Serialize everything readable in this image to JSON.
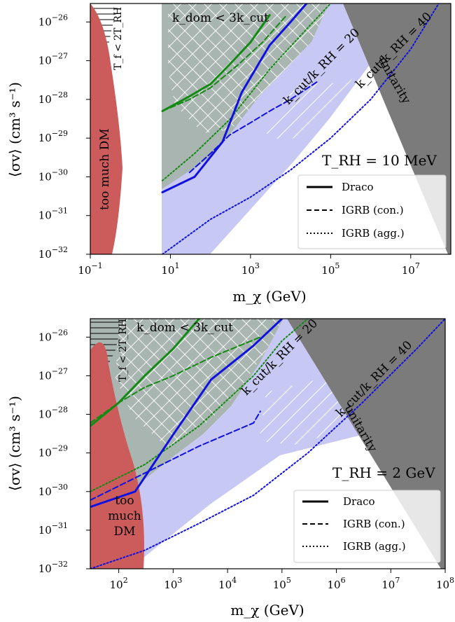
{
  "chart_data": [
    {
      "type": "line",
      "panel": "top",
      "x_scale": "log",
      "y_scale": "log",
      "xlim": [
        0.1,
        100000000
      ],
      "ylim": [
        1e-32,
        3e-26
      ],
      "xlabel": "m_χ (GeV)",
      "ylabel": "⟨σv⟩ (cm³ s⁻¹)",
      "x_tick_exps": [
        -1,
        1,
        3,
        5,
        7
      ],
      "y_tick_exps": [
        -32,
        -31,
        -30,
        -29,
        -28,
        -27,
        -26
      ],
      "trh_label": "T_RH = 10 MeV",
      "legend_position": "lower-right",
      "legend": [
        {
          "label": "Draco",
          "style": "solid"
        },
        {
          "label": "IGRB (con.)",
          "style": "dashed"
        },
        {
          "label": "IGRB (agg.)",
          "style": "dotted"
        }
      ],
      "colors": {
        "green": "#138a13",
        "blue": "#1010e0",
        "red": "#cc5c5c",
        "gray_region": "#a8b5b1",
        "lavender": "#c8c8f4",
        "dark_gray": "#7b7b7b"
      },
      "region_labels": {
        "too_much_dm": [
          "too much DM"
        ],
        "unitarity": "unitarity",
        "k_dom": "k_dom < 3k_cut",
        "kcut20": "k_cut/k_RH = 20",
        "kcut40": "k_cut/k_RH = 40",
        "tf": "T_f < 2T_RH"
      },
      "series": [
        {
          "name": "Draco",
          "color": "green",
          "style": "solid",
          "x": [
            6.3,
            30,
            100,
            300,
            1000,
            3000
          ],
          "y": [
            5e-29,
            1.2e-28,
            2.5e-28,
            8e-28,
            3e-27,
            1.5e-26
          ]
        },
        {
          "name": "IGRB (con.)",
          "color": "green",
          "style": "dashed",
          "x": [
            6.3,
            30,
            100,
            500,
            2000,
            8000
          ],
          "y": [
            5e-29,
            1e-28,
            2e-28,
            8e-28,
            3e-27,
            1.5e-26
          ]
        },
        {
          "name": "IGRB (agg.)",
          "color": "green",
          "style": "dotted",
          "x": [
            6.3,
            40,
            300,
            3000,
            30000,
            100000
          ],
          "y": [
            8e-31,
            4e-30,
            3e-29,
            6e-28,
            8e-27,
            3e-26
          ]
        },
        {
          "name": "Draco",
          "color": "blue",
          "style": "solid",
          "x": [
            6.3,
            40,
            200,
            600,
            3000,
            10000,
            25000
          ],
          "y": [
            4e-31,
            1e-30,
            8e-30,
            1.5e-28,
            2.5e-27,
            1e-26,
            3e-26
          ]
        },
        {
          "name": "IGRB (con.)",
          "color": "blue",
          "style": "dashed",
          "x": [
            30,
            100,
            300,
            1000,
            3000,
            10000,
            50000
          ],
          "y": [
            1.3e-30,
            4e-30,
            1.2e-29,
            2.5e-29,
            5e-29,
            1e-28,
            3e-28
          ]
        },
        {
          "name": "IGRB (agg.)",
          "color": "blue",
          "style": "dotted",
          "x": [
            6.3,
            100,
            1000,
            10000,
            100000,
            1000000,
            10000000,
            50000000
          ],
          "y": [
            1e-32,
            8e-32,
            3e-31,
            1.5e-30,
            1e-29,
            1e-28,
            2e-27,
            3e-26
          ]
        }
      ]
    },
    {
      "type": "line",
      "panel": "bottom",
      "x_scale": "log",
      "y_scale": "log",
      "xlim": [
        30,
        100000000
      ],
      "ylim": [
        1e-32,
        3e-26
      ],
      "xlabel": "m_χ (GeV)",
      "ylabel": "⟨σv⟩ (cm³ s⁻¹)",
      "x_tick_exps": [
        2,
        3,
        4,
        5,
        6,
        7,
        8
      ],
      "y_tick_exps": [
        -32,
        -31,
        -30,
        -29,
        -28,
        -27,
        -26
      ],
      "trh_label": "T_RH = 2 GeV",
      "legend_position": "lower-right",
      "legend": [
        {
          "label": "Draco",
          "style": "solid"
        },
        {
          "label": "IGRB (con.)",
          "style": "dashed"
        },
        {
          "label": "IGRB (agg.)",
          "style": "dotted"
        }
      ],
      "colors": {
        "green": "#138a13",
        "blue": "#1010e0",
        "red": "#cc5c5c",
        "gray_region": "#a8b5b1",
        "lavender": "#c8c8f4",
        "dark_gray": "#7b7b7b"
      },
      "region_labels": {
        "too_much_dm": [
          "too",
          "much",
          "DM"
        ],
        "unitarity": "unitarity",
        "k_dom": "k_dom < 3k_cut",
        "kcut20": "k_cut/k_RH = 20",
        "kcut40": "k_cut/k_RH = 40",
        "tf": "T_f < 2T_RH"
      },
      "series": [
        {
          "name": "Draco",
          "color": "green",
          "style": "solid",
          "x": [
            30,
            100,
            300,
            1000,
            3000
          ],
          "y": [
            5e-29,
            2e-28,
            1e-27,
            5e-27,
            3e-26
          ]
        },
        {
          "name": "IGRB (con.)",
          "color": "green",
          "style": "dashed",
          "x": [
            30,
            100,
            300,
            1000,
            5000,
            40000
          ],
          "y": [
            6e-29,
            2e-28,
            5e-28,
            1e-27,
            3e-27,
            1e-26
          ]
        },
        {
          "name": "IGRB (agg.)",
          "color": "green",
          "style": "dotted",
          "x": [
            30,
            300,
            3000,
            30000,
            100000,
            300000
          ],
          "y": [
            1e-30,
            5e-30,
            5e-29,
            1e-27,
            8e-27,
            3e-26
          ]
        },
        {
          "name": "Draco",
          "color": "blue",
          "style": "solid",
          "x": [
            30,
            200,
            1000,
            5000,
            30000,
            100000
          ],
          "y": [
            4e-31,
            1e-30,
            3e-29,
            8e-28,
            6e-27,
            3e-26
          ]
        },
        {
          "name": "IGRB (con.)",
          "color": "blue",
          "style": "dashed",
          "x": [
            30,
            300,
            3000,
            30000,
            40000
          ],
          "y": [
            6e-31,
            3e-30,
            1.5e-29,
            6e-29,
            1.2e-28
          ]
        },
        {
          "name": "IGRB (agg.)",
          "color": "blue",
          "style": "dotted",
          "x": [
            30,
            300,
            3000,
            30000,
            300000,
            3000000,
            30000000,
            100000000
          ],
          "y": [
            1e-32,
            3e-32,
            1.5e-31,
            8e-31,
            1e-29,
            2e-28,
            5e-27,
            3e-26
          ]
        }
      ]
    }
  ]
}
